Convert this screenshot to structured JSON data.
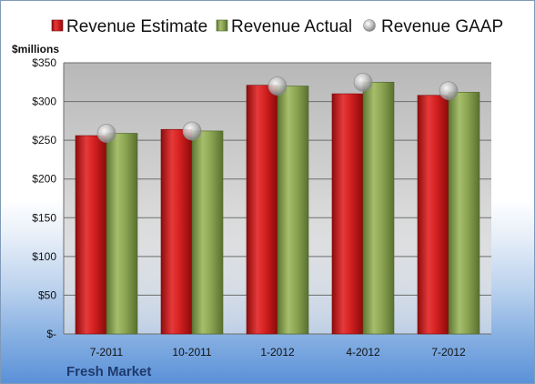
{
  "chart_data": {
    "type": "bar",
    "unit_label": "$millions",
    "company": "Fresh Market",
    "categories": [
      "7-2011",
      "10-2011",
      "1-2012",
      "4-2012",
      "7-2012"
    ],
    "ylim": [
      0,
      350
    ],
    "yticks": [
      0,
      50,
      100,
      150,
      200,
      250,
      300,
      350
    ],
    "ytick_labels": [
      "$-",
      "$50",
      "$100",
      "$150",
      "$200",
      "$250",
      "$300",
      "$350"
    ],
    "grid": true,
    "legend_position": "top",
    "series": [
      {
        "name": "Revenue Estimate",
        "kind": "bar",
        "color": "#d42020",
        "values": [
          256,
          264,
          321,
          310,
          308
        ]
      },
      {
        "name": "Revenue Actual",
        "kind": "bar",
        "color": "#8ca653",
        "values": [
          259,
          262,
          320,
          325,
          312
        ]
      },
      {
        "name": "Revenue GAAP",
        "kind": "marker",
        "color": "#b8b8b8",
        "values": [
          259,
          262,
          320,
          325,
          314
        ]
      }
    ]
  }
}
